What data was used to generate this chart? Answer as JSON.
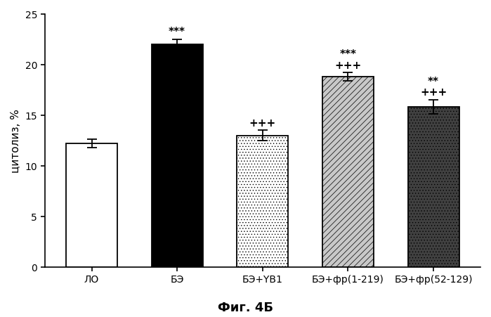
{
  "categories": [
    "ЛО",
    "БЭ",
    "БЭ+YB1",
    "БЭ+фр(1-219)",
    "БЭ+фр(52-129)"
  ],
  "values": [
    12.2,
    22.0,
    13.0,
    18.8,
    15.8
  ],
  "errors": [
    0.4,
    0.5,
    0.5,
    0.4,
    0.7
  ],
  "ylabel": "цитолиз, %",
  "ylim": [
    0,
    25
  ],
  "yticks": [
    0,
    5,
    10,
    15,
    20,
    25
  ],
  "title": "Фиг. 4Б",
  "background_color": "#ffffff",
  "figure_width": 6.99,
  "figure_height": 4.52
}
